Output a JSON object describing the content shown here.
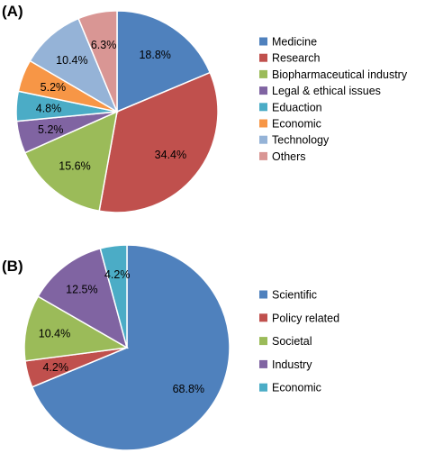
{
  "chart_data": [
    {
      "type": "pie",
      "panel_label": "(A)",
      "title": "",
      "legend_position": "right",
      "slices": [
        {
          "name": "Medicine",
          "value": 18.8,
          "label": "18.8%",
          "color": "#4f81bd"
        },
        {
          "name": "Research",
          "value": 34.4,
          "label": "34.4%",
          "color": "#c0504d"
        },
        {
          "name": "Biopharmaceutical industry",
          "value": 15.6,
          "label": "15.6%",
          "color": "#9bbb59"
        },
        {
          "name": "Legal & ethical issues",
          "value": 5.2,
          "label": "5.2%",
          "color": "#8064a2"
        },
        {
          "name": "Eduaction",
          "value": 4.8,
          "label": "4.8%",
          "color": "#4bacc6"
        },
        {
          "name": "Economic",
          "value": 5.2,
          "label": "5.2%",
          "color": "#f79646"
        },
        {
          "name": "Technology",
          "value": 10.4,
          "label": "10.4%",
          "color": "#95b3d7"
        },
        {
          "name": "Others",
          "value": 6.3,
          "label": "6.3%",
          "color": "#d99694"
        }
      ]
    },
    {
      "type": "pie",
      "panel_label": "(B)",
      "title": "",
      "legend_position": "right",
      "slices": [
        {
          "name": "Scientific",
          "value": 68.8,
          "label": "68.8%",
          "color": "#4f81bd"
        },
        {
          "name": "Policy related",
          "value": 4.2,
          "label": "4.2%",
          "color": "#c0504d"
        },
        {
          "name": "Societal",
          "value": 10.4,
          "label": "10.4%",
          "color": "#9bbb59"
        },
        {
          "name": "Industry",
          "value": 12.5,
          "label": "12.5%",
          "color": "#8064a2"
        },
        {
          "name": "Economic",
          "value": 4.2,
          "label": "4.2%",
          "color": "#4bacc6"
        }
      ]
    }
  ]
}
